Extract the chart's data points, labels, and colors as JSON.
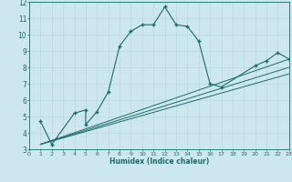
{
  "xlabel": "Humidex (Indice chaleur)",
  "xlim": [
    0,
    23
  ],
  "ylim": [
    3,
    12
  ],
  "xticks": [
    0,
    1,
    2,
    3,
    4,
    5,
    6,
    7,
    8,
    9,
    10,
    11,
    12,
    13,
    14,
    15,
    16,
    17,
    18,
    19,
    20,
    21,
    22,
    23
  ],
  "yticks": [
    3,
    4,
    5,
    6,
    7,
    8,
    9,
    10,
    11,
    12
  ],
  "bg_color": "#cce8ee",
  "grid_color": "#b8d8de",
  "line_color": "#1a6b6b",
  "line1_x": [
    1,
    2,
    4,
    5,
    5,
    6,
    7,
    8,
    9,
    10,
    11,
    12,
    13,
    14,
    15,
    16,
    17,
    20,
    21,
    22,
    23
  ],
  "line1_y": [
    4.7,
    3.3,
    5.2,
    5.4,
    4.5,
    5.3,
    6.5,
    9.3,
    10.2,
    10.6,
    10.6,
    11.7,
    10.6,
    10.5,
    9.6,
    7.0,
    6.8,
    8.1,
    8.4,
    8.9,
    8.5
  ],
  "line2_x": [
    1,
    23
  ],
  "line2_y": [
    3.3,
    8.5
  ],
  "line3_x": [
    1,
    23
  ],
  "line3_y": [
    3.3,
    8.0
  ],
  "line4_x": [
    1,
    23
  ],
  "line4_y": [
    3.3,
    7.6
  ],
  "figsize": [
    3.2,
    2.0
  ],
  "dpi": 100
}
